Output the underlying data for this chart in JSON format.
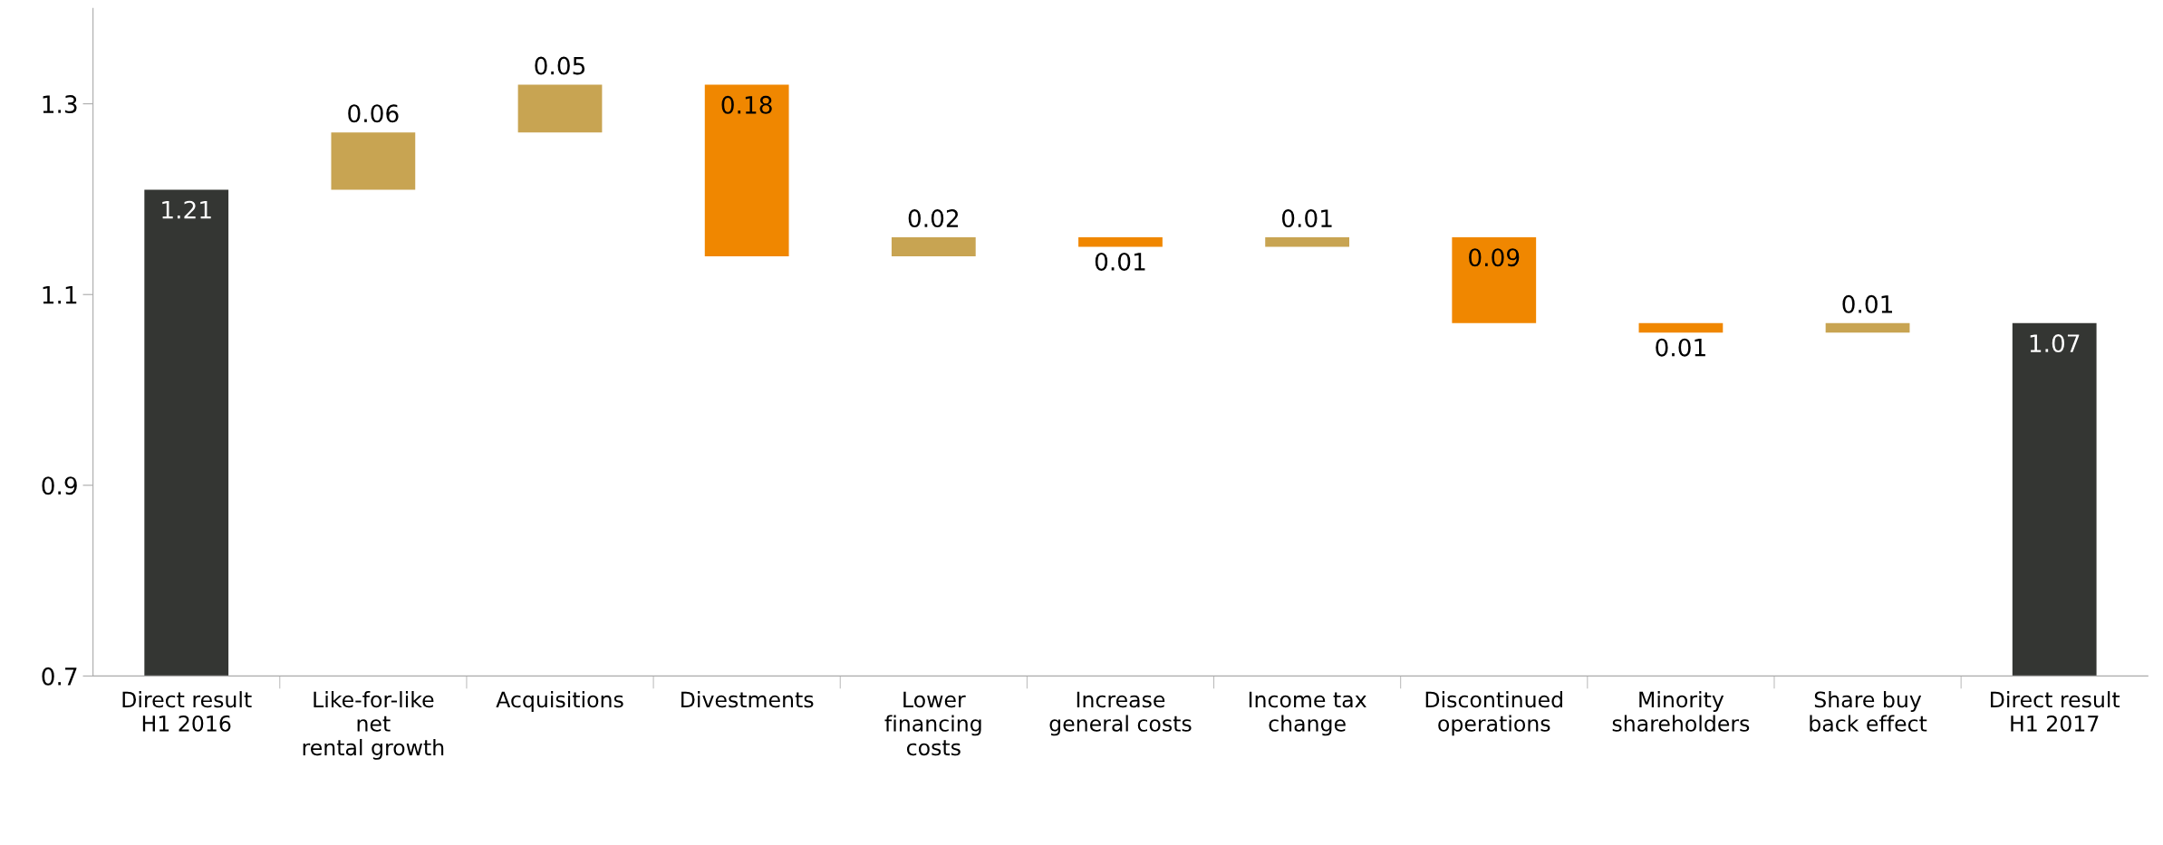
{
  "chart_data": {
    "type": "bar",
    "categories": [
      "Direct result\nH1 2016",
      "Like-for-like\nnet\nrental growth",
      "Acquisitions",
      "Divestments",
      "Lower\nfinancing\ncosts",
      "Increase\ngeneral costs",
      "Income tax\nchange",
      "Discontinued\noperations",
      "Minority\nshareholders",
      "Share buy\nback effect",
      "Direct result\nH1 2017"
    ],
    "values": [
      1.21,
      0.06,
      0.05,
      0.18,
      0.02,
      0.01,
      0.01,
      0.09,
      0.01,
      0.01,
      1.07
    ],
    "base": [
      0,
      1.21,
      1.27,
      1.14,
      1.14,
      1.15,
      1.15,
      1.07,
      1.06,
      1.06,
      0
    ],
    "colors": [
      "#343633",
      "#c8a452",
      "#c8a452",
      "#f08700",
      "#c8a452",
      "#f08700",
      "#c8a452",
      "#f08700",
      "#f08700",
      "#c8a452",
      "#343633"
    ],
    "ylim": [
      0.7,
      1.4
    ],
    "yticks": [
      0.7,
      0.9,
      1.1,
      1.3
    ],
    "data_labels": true,
    "grid": false,
    "legend": false
  }
}
